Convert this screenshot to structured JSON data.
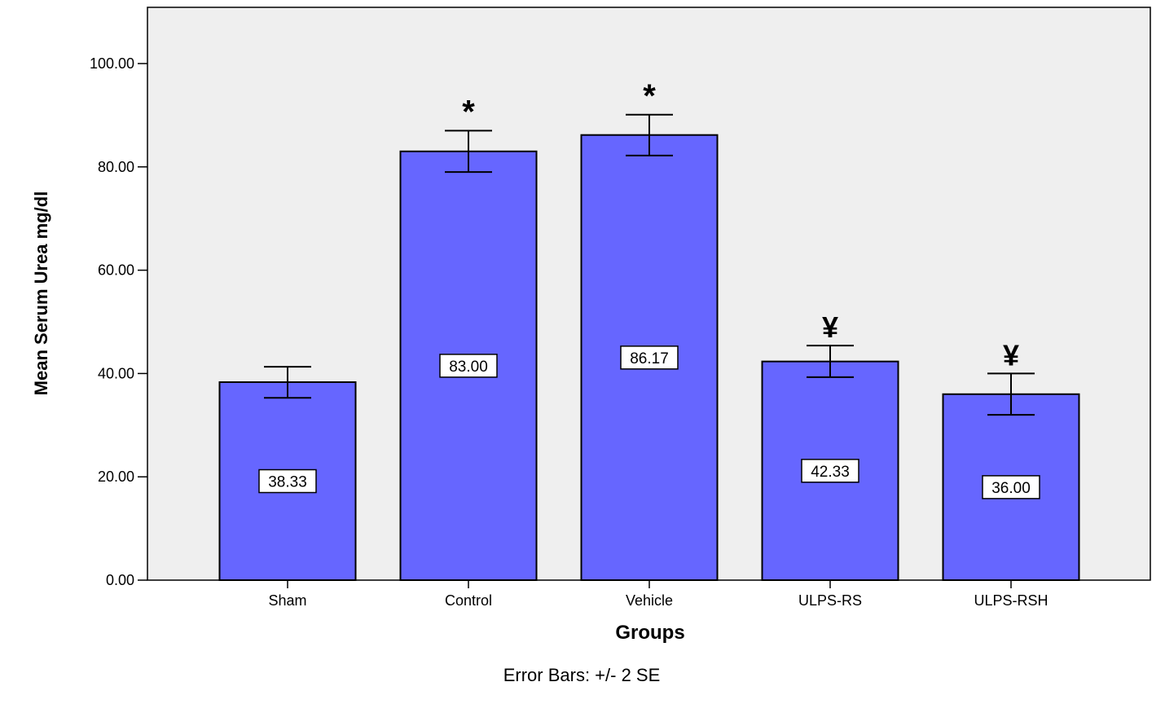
{
  "chart_data": {
    "type": "bar",
    "categories": [
      "Sham",
      "Control",
      "Vehicle",
      "ULPS-RS",
      "ULPS-RSH"
    ],
    "values": [
      38.33,
      83.0,
      86.17,
      42.33,
      36.0
    ],
    "value_labels": [
      "38.33",
      "83.00",
      "86.17",
      "42.33",
      "36.00"
    ],
    "error_bars": {
      "lower": [
        35.3,
        79.0,
        82.2,
        39.3,
        32.0
      ],
      "upper": [
        41.3,
        87.0,
        90.1,
        45.4,
        40.0
      ]
    },
    "significance_markers": [
      "",
      "*",
      "*",
      "¥",
      "¥"
    ],
    "xlabel": "Groups",
    "ylabel": "Mean Serum Urea mg/dl",
    "footnote": "Error Bars: +/- 2 SE",
    "ylim": [
      0,
      110
    ],
    "yticks": [
      0,
      20,
      40,
      60,
      80,
      100
    ],
    "ytick_labels": [
      "0.00",
      "20.00",
      "40.00",
      "60.00",
      "80.00",
      "100.00"
    ],
    "grid": false,
    "colors": {
      "bar_fill": "#6666ff",
      "bar_stroke": "#000000",
      "plot_background": "#efefef"
    }
  }
}
